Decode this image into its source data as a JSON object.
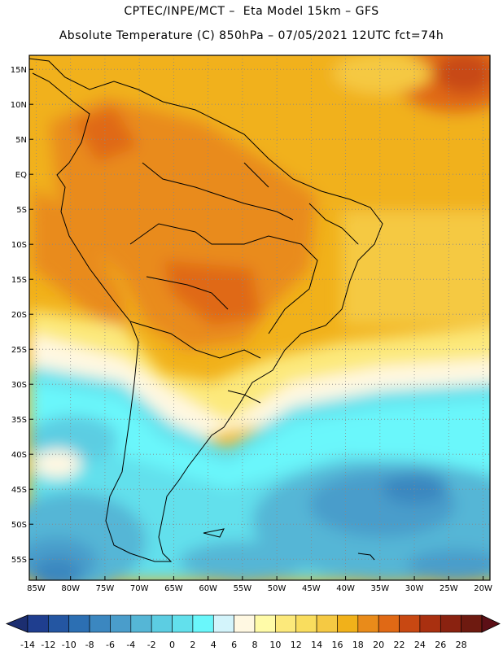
{
  "title": "CPTEC/INPE/MCT –  Eta Model 15km – GFS",
  "subtitle": "Absolute Temperature (C) 850hPa – 07/05/2021 12UTC fct=74h",
  "lat_ticks": [
    "15N",
    "10N",
    "5N",
    "EQ",
    "5S",
    "10S",
    "15S",
    "20S",
    "25S",
    "30S",
    "35S",
    "40S",
    "45S",
    "50S",
    "55S"
  ],
  "lon_ticks": [
    "85W",
    "80W",
    "75W",
    "70W",
    "65W",
    "60W",
    "55W",
    "50W",
    "45W",
    "40W",
    "35W",
    "30W",
    "25W",
    "20W"
  ],
  "colorbar": {
    "labels": [
      "-14",
      "-12",
      "-10",
      "-8",
      "-6",
      "-4",
      "-2",
      "0",
      "2",
      "4",
      "6",
      "8",
      "10",
      "12",
      "14",
      "16",
      "18",
      "20",
      "22",
      "24",
      "26",
      "28"
    ],
    "colors": [
      "#1f3e8f",
      "#2456a2",
      "#2c6fb3",
      "#3b87c0",
      "#4a9dcb",
      "#55b6d6",
      "#5ccde2",
      "#62e0ec",
      "#6af7fb",
      "#d3f4fb",
      "#fff8e2",
      "#fffba8",
      "#fce97b",
      "#f9dd5e",
      "#f5c943",
      "#f1b11a",
      "#e98b1a",
      "#e06915",
      "#c84812",
      "#a93010",
      "#8a2210",
      "#6e1a10"
    ],
    "low_color": "#1c2e70",
    "high_color": "#5c0f16"
  },
  "chart_data": {
    "type": "heatmap",
    "title": "CPTEC/INPE/MCT – Eta Model 15km – GFS",
    "subtitle": "Absolute Temperature (C) 850hPa – 07/05/2021 12UTC fct=74h",
    "variable": "Absolute Temperature",
    "units": "C",
    "level": "850hPa",
    "lon_range": [
      -86,
      -19
    ],
    "lat_range": [
      -58,
      17
    ],
    "value_range": [
      -14,
      28
    ],
    "grid": "dotted",
    "regions": [
      {
        "region": "tropical South America (EQ to 20S)",
        "temp_c": [
          18,
          22
        ]
      },
      {
        "region": "western Amazon / Bolivia lowlands",
        "temp_c": [
          20,
          24
        ]
      },
      {
        "region": "Atlantic near 15N 25W",
        "temp_c": [
          22,
          24
        ]
      },
      {
        "region": "subtropical band 25S-30S",
        "temp_c": [
          6,
          14
        ]
      },
      {
        "region": "Patagonia and South Atlantic 35S-50S",
        "temp_c": [
          -4,
          4
        ]
      },
      {
        "region": "far south ocean near 55S",
        "temp_c": [
          -10,
          -6
        ]
      }
    ]
  }
}
